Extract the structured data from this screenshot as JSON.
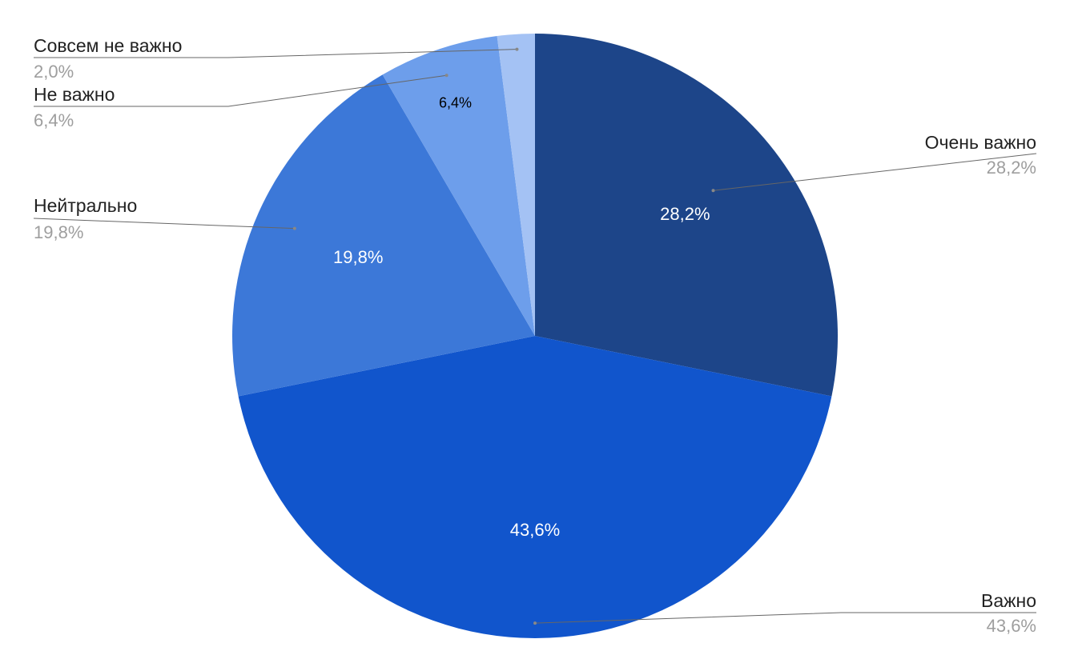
{
  "chart_data": {
    "type": "pie",
    "start_angle_deg": 0,
    "direction": "clockwise",
    "slices": [
      {
        "label": "Очень важно",
        "value": 28.2,
        "display": "28,2%",
        "color": "#1d4589",
        "text_color": "#ffffff"
      },
      {
        "label": "Важно",
        "value": 43.6,
        "display": "43,6%",
        "color": "#1155cc",
        "text_color": "#ffffff"
      },
      {
        "label": "Нейтрально",
        "value": 19.8,
        "display": "19,8%",
        "color": "#3c78d8",
        "text_color": "#ffffff"
      },
      {
        "label": "Не важно",
        "value": 6.4,
        "display": "6,4%",
        "color": "#6d9eeb",
        "text_color": "#000000"
      },
      {
        "label": "Совсем не важно",
        "value": 2.0,
        "display": "2,0%",
        "color": "#a4c2f4",
        "text_color": "#000000"
      }
    ],
    "legend": "callouts"
  }
}
